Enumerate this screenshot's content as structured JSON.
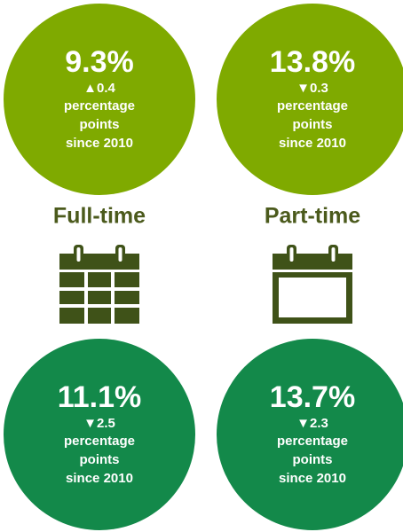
{
  "top_row": [
    {
      "value": "9.3%",
      "change": "▲0.4",
      "note_lines": [
        "percentage",
        "points",
        "since 2010"
      ]
    },
    {
      "value": "13.8%",
      "change": "▼0.3",
      "note_lines": [
        "percentage",
        "points",
        "since 2010"
      ]
    }
  ],
  "labels": [
    "Full-time",
    "Part-time"
  ],
  "bottom_row": [
    {
      "value": "11.1%",
      "change": "▼2.5",
      "note_lines": [
        "percentage",
        "points",
        "since 2010"
      ]
    },
    {
      "value": "13.7%",
      "change": "▼2.3",
      "note_lines": [
        "percentage",
        "points",
        "since 2010"
      ]
    }
  ]
}
